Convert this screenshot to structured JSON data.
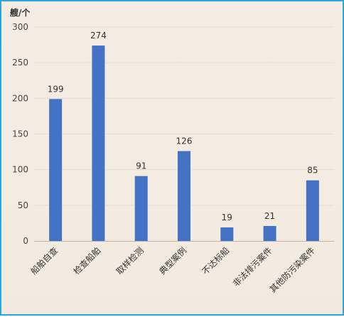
{
  "chart_data": {
    "type": "bar",
    "unit_label": "艘/个",
    "categories": [
      "船舶自查",
      "检查船舶",
      "取样检测",
      "典型案例",
      "不达标船",
      "非法排污案件",
      "其他防污染案件"
    ],
    "values": [
      199,
      274,
      91,
      126,
      19,
      21,
      85
    ],
    "ylim": [
      0,
      300
    ],
    "yticks": [
      0,
      50,
      100,
      150,
      200,
      250,
      300
    ],
    "grid": true,
    "bar_color": "#4472c4",
    "legend": "none"
  }
}
